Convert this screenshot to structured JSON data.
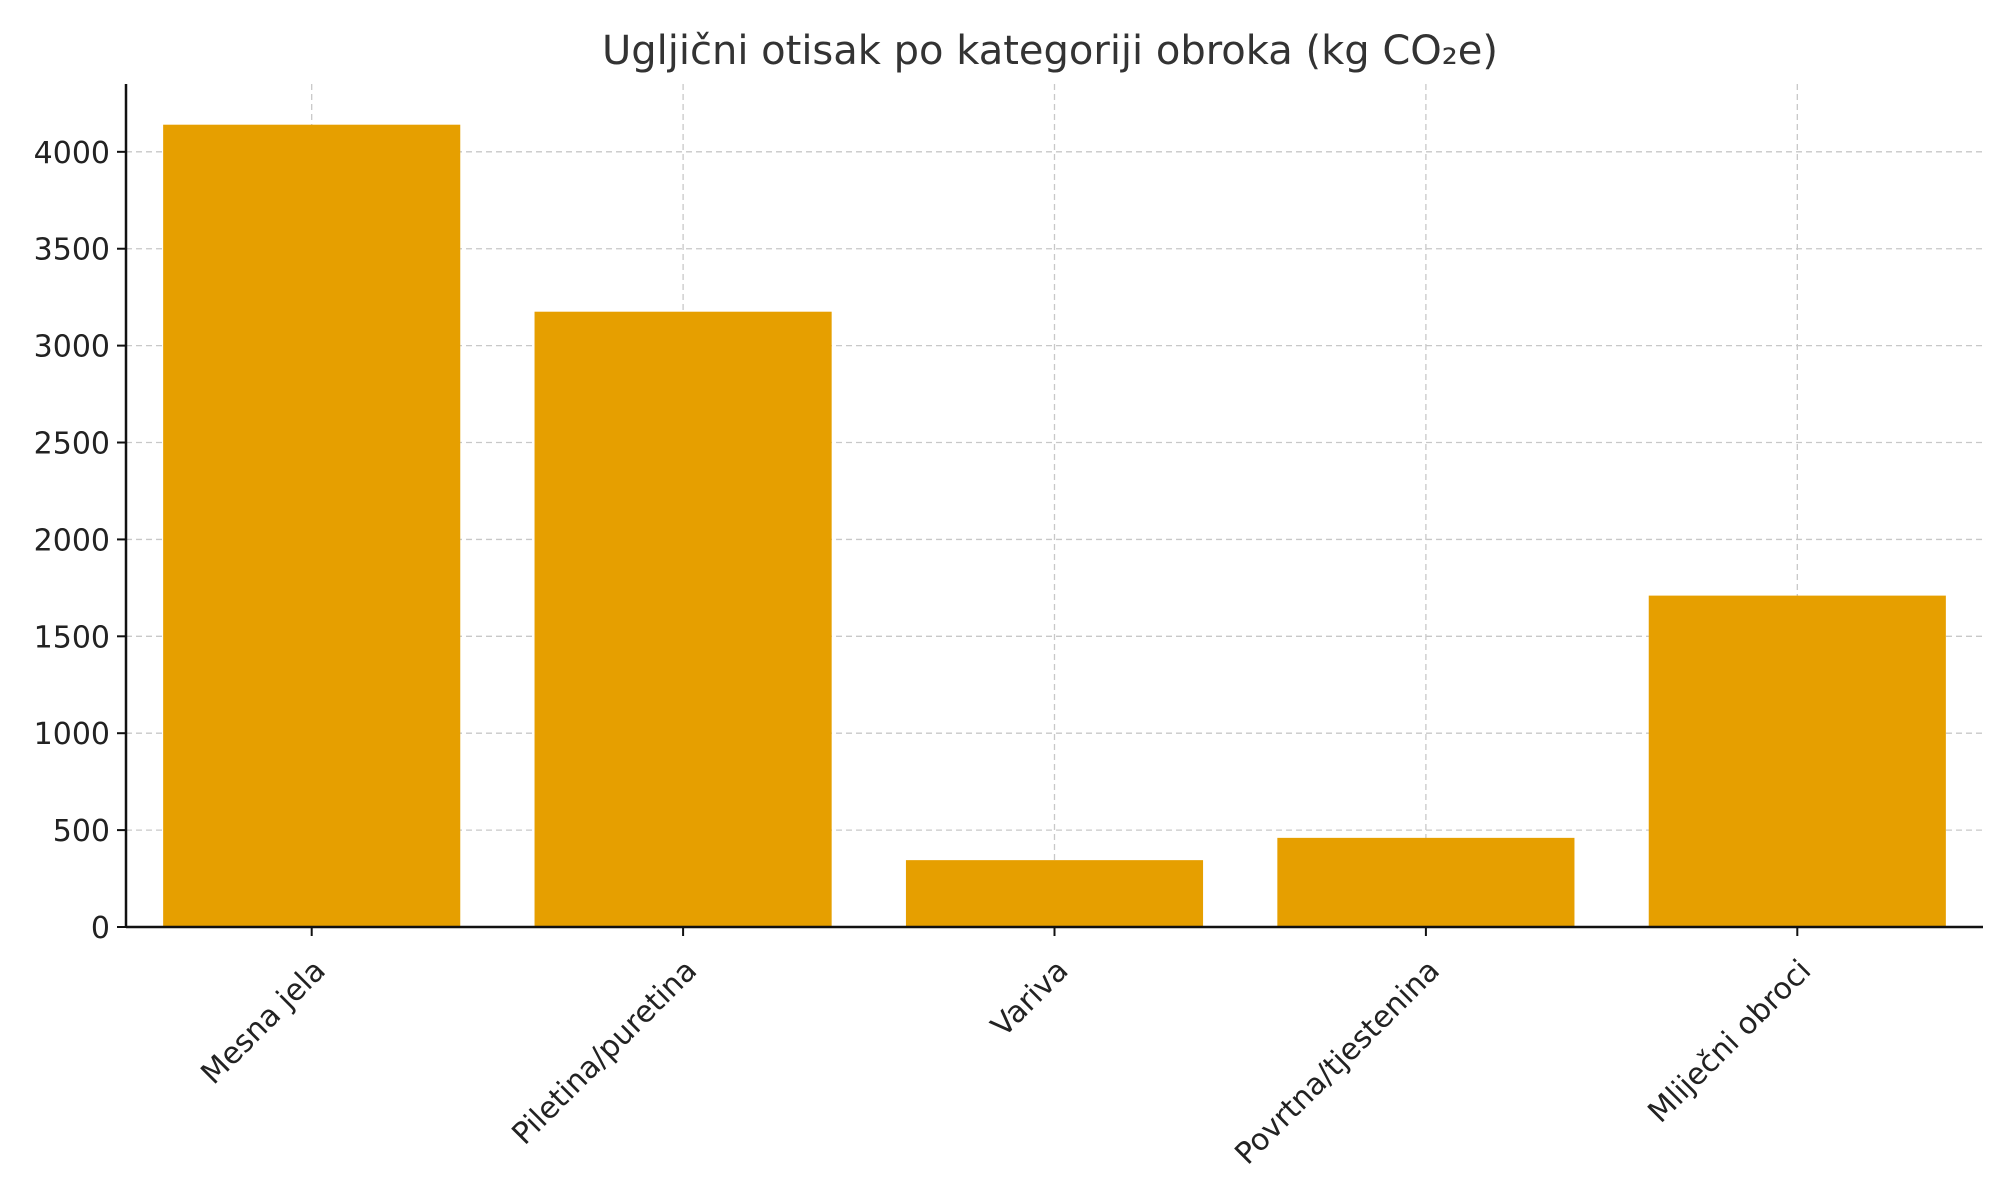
{
  "chart_data": {
    "type": "bar",
    "title": "Ugljični otisak po kategoriji obroka (kg CO₂e)",
    "xlabel": "",
    "ylabel": "",
    "categories": [
      "Mesna jela",
      "Piletina/puretina",
      "Variva",
      "Povrtna/tjestenina",
      "Mliječni obroci"
    ],
    "values": [
      4140,
      3175,
      345,
      460,
      1710
    ],
    "ylim": [
      0,
      4350
    ],
    "yticks": [
      0,
      500,
      1000,
      1500,
      2000,
      2500,
      3000,
      3500,
      4000
    ],
    "grid": true,
    "bar_color": "#E69F00"
  }
}
